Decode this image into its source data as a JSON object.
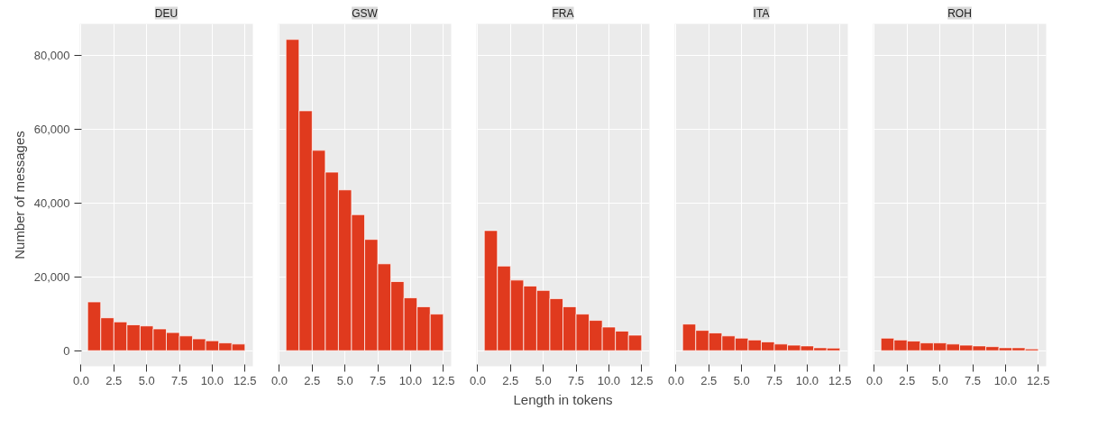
{
  "chart_data": [
    {
      "type": "histogram",
      "title": "DEU",
      "ylabel": "Number of messages",
      "bins": [
        0.5,
        1.5,
        2.5,
        3.5,
        4.5,
        5.5,
        6.5,
        7.5,
        8.5,
        9.5,
        10.5,
        11.5,
        12.5
      ],
      "values": [
        13200,
        8900,
        7800,
        7000,
        6700,
        5900,
        4900,
        4000,
        3200,
        2700,
        2100,
        1800
      ],
      "color": "#e03a1e",
      "xlim": [
        -0.1,
        13.1
      ],
      "xticks": [
        {
          "value": 0,
          "label": "0.0"
        },
        2.5,
        {
          "value": 5,
          "label": "5.0"
        },
        7.5,
        {
          "value": 10,
          "label": "10.0"
        },
        12.5
      ],
      "ylim": [
        -4210,
        88410
      ],
      "yticks": [
        {
          "value": 0,
          "label": "0"
        },
        {
          "value": 20000,
          "label": "20,000"
        },
        {
          "value": 40000,
          "label": "40,000"
        },
        {
          "value": 60000,
          "label": "60,000"
        },
        {
          "value": 80000,
          "label": "80,000"
        }
      ],
      "grid": true
    },
    {
      "type": "histogram",
      "title": "GSW",
      "bins": [
        0.5,
        1.5,
        2.5,
        3.5,
        4.5,
        5.5,
        6.5,
        7.5,
        8.5,
        9.5,
        10.5,
        11.5,
        12.5
      ],
      "values": [
        84200,
        64900,
        54200,
        48300,
        43500,
        36800,
        30100,
        23500,
        18700,
        14300,
        11900,
        9900
      ],
      "color": "#e03a1e",
      "xlim": [
        -0.1,
        13.1
      ],
      "xticks": [
        {
          "value": 0,
          "label": "0.0"
        },
        2.5,
        {
          "value": 5,
          "label": "5.0"
        },
        7.5,
        {
          "value": 10,
          "label": "10.0"
        },
        12.5
      ],
      "ylim": [
        -4210,
        88410
      ],
      "yticks": [
        {
          "value": 0,
          "label": null
        },
        {
          "value": 20000,
          "label": null
        },
        {
          "value": 40000,
          "label": null
        },
        {
          "value": 60000,
          "label": null
        },
        {
          "value": 80000,
          "label": null
        }
      ],
      "tick_labels": "x",
      "grid": true
    },
    {
      "type": "histogram",
      "title": "FRA",
      "xlabel": "Length in tokens",
      "bins": [
        0.5,
        1.5,
        2.5,
        3.5,
        4.5,
        5.5,
        6.5,
        7.5,
        8.5,
        9.5,
        10.5,
        11.5,
        12.5
      ],
      "values": [
        32500,
        22900,
        19100,
        17500,
        16300,
        14100,
        11900,
        9900,
        8200,
        6400,
        5300,
        4200
      ],
      "color": "#e03a1e",
      "xlim": [
        -0.1,
        13.1
      ],
      "xticks": [
        {
          "value": 0,
          "label": "0.0"
        },
        2.5,
        {
          "value": 5,
          "label": "5.0"
        },
        7.5,
        {
          "value": 10,
          "label": "10.0"
        },
        12.5
      ],
      "ylim": [
        -4210,
        88410
      ],
      "yticks": [
        {
          "value": 0,
          "label": null
        },
        {
          "value": 20000,
          "label": null
        },
        {
          "value": 40000,
          "label": null
        },
        {
          "value": 60000,
          "label": null
        },
        {
          "value": 80000,
          "label": null
        }
      ],
      "tick_labels": "x",
      "grid": true
    },
    {
      "type": "histogram",
      "title": "ITA",
      "bins": [
        0.5,
        1.5,
        2.5,
        3.5,
        4.5,
        5.5,
        6.5,
        7.5,
        8.5,
        9.5,
        10.5,
        11.5,
        12.5
      ],
      "values": [
        7200,
        5500,
        4800,
        4000,
        3400,
        2900,
        2400,
        1800,
        1500,
        1300,
        800,
        700
      ],
      "color": "#e03a1e",
      "xlim": [
        -0.1,
        13.1
      ],
      "xticks": [
        {
          "value": 0,
          "label": "0.0"
        },
        2.5,
        {
          "value": 5,
          "label": "5.0"
        },
        7.5,
        {
          "value": 10,
          "label": "10.0"
        },
        12.5
      ],
      "ylim": [
        -4210,
        88410
      ],
      "yticks": [
        {
          "value": 0,
          "label": null
        },
        {
          "value": 20000,
          "label": null
        },
        {
          "value": 40000,
          "label": null
        },
        {
          "value": 60000,
          "label": null
        },
        {
          "value": 80000,
          "label": null
        }
      ],
      "tick_labels": "x",
      "grid": true
    },
    {
      "type": "histogram",
      "title": "ROH",
      "bins": [
        0.5,
        1.5,
        2.5,
        3.5,
        4.5,
        5.5,
        6.5,
        7.5,
        8.5,
        9.5,
        10.5,
        11.5,
        12.5
      ],
      "values": [
        3400,
        2900,
        2600,
        2100,
        2100,
        1800,
        1500,
        1300,
        1100,
        800,
        800,
        500
      ],
      "color": "#e03a1e",
      "xlim": [
        -0.1,
        13.1
      ],
      "xticks": [
        {
          "value": 0,
          "label": "0.0"
        },
        2.5,
        {
          "value": 5,
          "label": "5.0"
        },
        7.5,
        {
          "value": 10,
          "label": "10.0"
        },
        12.5
      ],
      "ylim": [
        -4210,
        88410
      ],
      "yticks": [
        {
          "value": 0,
          "label": null
        },
        {
          "value": 20000,
          "label": null
        },
        {
          "value": 40000,
          "label": null
        },
        {
          "value": 60000,
          "label": null
        },
        {
          "value": 80000,
          "label": null
        }
      ],
      "tick_labels": "x",
      "grid": true
    }
  ]
}
